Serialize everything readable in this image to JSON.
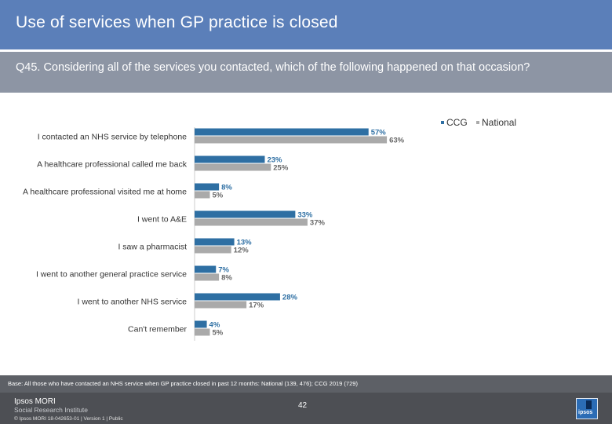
{
  "slide": {
    "title": "Use of services when GP practice is closed",
    "question": "Q45. Considering all of the services you contacted, which of the following happened on that occasion?",
    "base": "Base: All those who have contacted an NHS service when GP practice closed in past 12 months: National (139, 476); CCG 2019 (729)",
    "footer": {
      "brand_line1": "Ipsos MORI",
      "brand_line2": "Social Research Institute",
      "copyright": "© Ipsos MORI     18-042653-01 | Version 1 | Public",
      "page_number": "42",
      "logo_text": "ipsos"
    }
  },
  "colors": {
    "title_bg": "#5b7fb9",
    "question_bg": "#8d95a4",
    "ccg": "#2e6fa3",
    "national": "#aaaaaa"
  },
  "chart_data": {
    "type": "bar",
    "orientation": "horizontal",
    "categories": [
      "I contacted an NHS service by telephone",
      "A healthcare professional called me back",
      "A healthcare professional visited me at home",
      "I went to A&E",
      "I saw a pharmacist",
      "I went to another general practice service",
      "I  went to another NHS service",
      "Can't remember"
    ],
    "series": [
      {
        "name": "CCG",
        "values": [
          57,
          23,
          8,
          33,
          13,
          7,
          28,
          4
        ]
      },
      {
        "name": "National",
        "values": [
          63,
          25,
          5,
          37,
          12,
          8,
          17,
          5
        ]
      }
    ],
    "value_suffix": "%",
    "legend_position": "top-right",
    "xlim": [
      0,
      100
    ]
  }
}
